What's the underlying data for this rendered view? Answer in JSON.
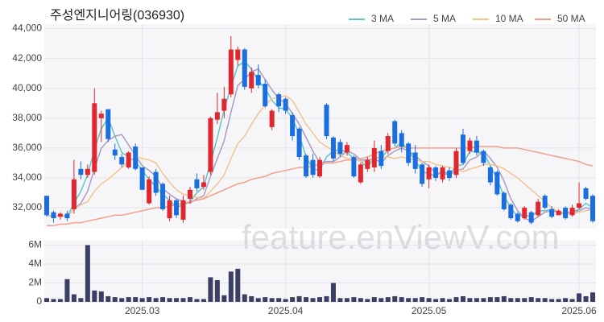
{
  "chart_data": {
    "type": "candlestick",
    "title": "주성엔지니어링(036930)",
    "watermark": "feature.enViewV.com",
    "up_color": "#e0262f",
    "down_color": "#1a6ee0",
    "grid": true,
    "legend": "top-right",
    "categories": [
      null,
      null,
      null,
      null,
      null,
      null,
      null,
      null,
      null,
      null,
      null,
      null,
      null,
      null,
      "2025.03",
      null,
      null,
      null,
      null,
      null,
      null,
      null,
      null,
      null,
      null,
      null,
      null,
      null,
      null,
      null,
      null,
      null,
      null,
      null,
      null,
      "2025.04",
      null,
      null,
      null,
      null,
      null,
      null,
      null,
      null,
      null,
      null,
      null,
      null,
      null,
      null,
      null,
      null,
      null,
      null,
      null,
      null,
      "2025.05",
      null,
      null,
      null,
      null,
      null,
      null,
      null,
      null,
      null,
      null,
      null,
      null,
      null,
      null,
      null,
      null,
      null,
      null,
      null,
      null,
      null,
      "2025.06",
      null,
      null
    ],
    "open": [
      32800,
      31700,
      31400,
      31600,
      31900,
      34600,
      34200,
      34400,
      38000,
      38600,
      35900,
      35400,
      34700,
      36100,
      34700,
      32300,
      34400,
      33600,
      31300,
      32500,
      31200,
      32600,
      33900,
      33400,
      34400,
      37900,
      38500,
      39600,
      41900,
      42600,
      40000,
      40900,
      40300,
      37400,
      39600,
      39300,
      38200,
      37300,
      35500,
      35200,
      34100,
      38900,
      36700,
      36400,
      35700,
      35400,
      33700,
      34600,
      34700,
      35800,
      35800,
      37800,
      37000,
      36300,
      35700,
      34900,
      33900,
      34700,
      33900,
      34500,
      34200,
      36900,
      35800,
      36500,
      35800,
      34700,
      34400,
      33000,
      32200,
      31600,
      31300,
      31700,
      31500,
      32800,
      31900,
      31500,
      32000,
      31500,
      32000,
      33300,
      32800
    ],
    "high": [
      32800,
      31800,
      31700,
      31800,
      35200,
      35100,
      34900,
      40000,
      38500,
      38600,
      36300,
      35600,
      35800,
      36300,
      34700,
      34100,
      34600,
      33700,
      32800,
      32600,
      32800,
      33400,
      34300,
      34200,
      38100,
      39700,
      40100,
      43500,
      42800,
      42700,
      41400,
      41600,
      40600,
      38600,
      39700,
      39400,
      38400,
      37400,
      35600,
      35600,
      35400,
      39000,
      36800,
      36600,
      36400,
      35500,
      35000,
      35400,
      36500,
      36200,
      37000,
      37900,
      37200,
      36400,
      36200,
      35000,
      34900,
      34800,
      34800,
      34700,
      36000,
      37300,
      36700,
      36800,
      35900,
      34800,
      34500,
      33100,
      32300,
      31700,
      32100,
      31800,
      32600,
      32900,
      32100,
      31900,
      32100,
      32200,
      33700,
      33400,
      32900
    ],
    "low": [
      31400,
      31000,
      31200,
      31100,
      31600,
      33900,
      34000,
      34200,
      36400,
      36400,
      35200,
      34700,
      34600,
      34500,
      33200,
      32200,
      32800,
      31800,
      31100,
      31300,
      31000,
      32300,
      33100,
      33200,
      34200,
      37600,
      38000,
      39400,
      41500,
      39900,
      39700,
      40000,
      38700,
      37200,
      38400,
      38300,
      36500,
      35200,
      34000,
      34000,
      34000,
      36600,
      35100,
      35400,
      35500,
      34000,
      33600,
      34400,
      34400,
      34600,
      35600,
      36100,
      35700,
      34800,
      34300,
      33400,
      33300,
      33800,
      33700,
      33800,
      34000,
      34900,
      35600,
      35500,
      34800,
      33500,
      32800,
      31800,
      31200,
      31000,
      31200,
      30900,
      31400,
      31900,
      31300,
      31500,
      31200,
      31400,
      31900,
      32500,
      31000
    ],
    "close": [
      31500,
      31300,
      31600,
      31300,
      33900,
      34200,
      34600,
      39000,
      38300,
      36600,
      35500,
      34900,
      35700,
      34600,
      33200,
      33900,
      33000,
      31900,
      32500,
      31500,
      32500,
      33200,
      33300,
      33700,
      38000,
      38400,
      39300,
      42600,
      42600,
      40100,
      41100,
      40200,
      38800,
      38500,
      38800,
      38500,
      36800,
      35400,
      34100,
      34200,
      35200,
      36800,
      35300,
      35600,
      36200,
      34100,
      34900,
      35200,
      36000,
      34800,
      36800,
      36300,
      36100,
      35000,
      34600,
      33600,
      34700,
      34000,
      34700,
      34000,
      35800,
      35000,
      36500,
      35700,
      35000,
      33700,
      32900,
      31900,
      31300,
      31100,
      32000,
      31000,
      32400,
      32000,
      31400,
      31800,
      31300,
      32000,
      32300,
      32600,
      31100
    ],
    "ylim": [
      30600,
      44300
    ],
    "yticks": [
      {
        "value": 32000,
        "label": "32,000"
      },
      {
        "value": 34000,
        "label": "34,000"
      },
      {
        "value": 36000,
        "label": "36,000"
      },
      {
        "value": 38000,
        "label": "38,000"
      },
      {
        "value": 40000,
        "label": "40,000"
      },
      {
        "value": 42000,
        "label": "42,000"
      },
      {
        "value": 44000,
        "label": "44,000"
      }
    ],
    "series": [
      {
        "name": "3 MA",
        "color": "#5cc6c6",
        "values": [
          31500,
          31400,
          31500,
          31400,
          32300,
          33100,
          34200,
          35900,
          37300,
          38000,
          36800,
          35700,
          35400,
          35100,
          34500,
          33900,
          33400,
          32900,
          32500,
          32000,
          32200,
          32400,
          33000,
          33400,
          35000,
          36700,
          38600,
          40100,
          41500,
          41800,
          41300,
          40500,
          40000,
          39200,
          38700,
          38600,
          38000,
          36900,
          35400,
          34600,
          34500,
          35400,
          35800,
          35900,
          35700,
          35300,
          35100,
          34700,
          35400,
          35300,
          35900,
          36000,
          36400,
          35800,
          35200,
          34400,
          34300,
          34100,
          34500,
          34200,
          34800,
          34900,
          35800,
          35700,
          35700,
          34800,
          33900,
          32800,
          32000,
          31400,
          31500,
          31400,
          31800,
          31800,
          31900,
          31700,
          31500,
          31700,
          31900,
          32300,
          32000
        ]
      },
      {
        "name": "5 MA",
        "color": "#a99ac4",
        "values": [
          31500,
          31400,
          31500,
          31400,
          31900,
          32300,
          33100,
          34600,
          36000,
          36500,
          36800,
          36900,
          36200,
          35500,
          34800,
          34500,
          34100,
          33300,
          32900,
          32600,
          32400,
          32300,
          32600,
          32800,
          34100,
          35300,
          36500,
          38400,
          40200,
          40600,
          41100,
          41300,
          40600,
          39900,
          39300,
          39000,
          38300,
          37600,
          36700,
          35800,
          35000,
          35100,
          35100,
          35400,
          35800,
          35600,
          35200,
          35200,
          35300,
          35000,
          35500,
          35800,
          36000,
          35800,
          35500,
          35100,
          34800,
          34300,
          34300,
          34200,
          34500,
          34600,
          35200,
          35400,
          35800,
          35300,
          34700,
          33800,
          32600,
          31800,
          31300,
          31100,
          31400,
          31700,
          31800,
          31700,
          31700,
          31700,
          31800,
          32000,
          31900
        ]
      },
      {
        "name": "10 MA",
        "color": "#f2c48d",
        "values": [
          31500,
          31400,
          31500,
          31400,
          31900,
          32200,
          32400,
          33100,
          33600,
          33900,
          34300,
          34700,
          35100,
          35400,
          35300,
          35200,
          35000,
          34300,
          33700,
          33200,
          32900,
          32800,
          32700,
          32600,
          33100,
          33600,
          34200,
          35300,
          36300,
          36800,
          37600,
          38300,
          38900,
          39300,
          39400,
          39500,
          39200,
          38400,
          37600,
          37000,
          36400,
          36100,
          35800,
          35500,
          35300,
          35300,
          35100,
          35100,
          35300,
          35400,
          35400,
          35300,
          35400,
          35300,
          35200,
          35100,
          35100,
          34900,
          34800,
          34700,
          34600,
          34400,
          34600,
          34700,
          34900,
          34900,
          34800,
          34600,
          34300,
          34000,
          33600,
          33200,
          32800,
          32400,
          32000,
          31700,
          31600,
          31600,
          31700,
          31800,
          31900
        ]
      },
      {
        "name": "50 MA",
        "color": "#f2a08a",
        "values": [
          30800,
          30800,
          30900,
          30900,
          31000,
          31000,
          31100,
          31200,
          31300,
          31400,
          31500,
          31500,
          31600,
          31700,
          31800,
          31900,
          32000,
          32000,
          32100,
          32200,
          32300,
          32400,
          32500,
          32600,
          32800,
          33000,
          33200,
          33400,
          33600,
          33700,
          33900,
          34000,
          34100,
          34300,
          34400,
          34500,
          34600,
          34700,
          34700,
          34800,
          34900,
          35000,
          35000,
          35100,
          35200,
          35200,
          35300,
          35400,
          35600,
          35800,
          35900,
          36000,
          36100,
          36000,
          36000,
          36000,
          36000,
          36000,
          36000,
          36000,
          36000,
          36000,
          36000,
          36100,
          36100,
          36100,
          36100,
          36000,
          36000,
          36000,
          35900,
          35800,
          35700,
          35600,
          35500,
          35400,
          35300,
          35200,
          35100,
          34900,
          34800
        ]
      }
    ],
    "volume": {
      "color": "#3c3f64",
      "values": [
        400000,
        300000,
        300000,
        2400000,
        800000,
        400000,
        6000000,
        1200000,
        1100000,
        600000,
        500000,
        400000,
        500000,
        500000,
        400000,
        500000,
        400000,
        500000,
        400000,
        400000,
        400000,
        500000,
        300000,
        300000,
        2600000,
        2300000,
        700000,
        3200000,
        3500000,
        800000,
        600000,
        400000,
        500000,
        400000,
        400000,
        300000,
        500000,
        600000,
        500000,
        400000,
        500000,
        600000,
        2000000,
        400000,
        400000,
        500000,
        400000,
        300000,
        500000,
        400000,
        500000,
        600000,
        500000,
        400000,
        400000,
        500000,
        400000,
        300000,
        400000,
        300000,
        500000,
        600000,
        400000,
        400000,
        400000,
        500000,
        500000,
        600000,
        400000,
        400000,
        400000,
        500000,
        400000,
        400000,
        300000,
        300000,
        400000,
        300000,
        900000,
        600000,
        1000000
      ],
      "ylim": [
        0,
        6500000
      ],
      "yticks": [
        0,
        {
          "value": 2000000,
          "label": "2M"
        },
        {
          "value": 4000000,
          "label": "4M"
        },
        {
          "value": 6000000,
          "label": "6M"
        }
      ]
    }
  }
}
